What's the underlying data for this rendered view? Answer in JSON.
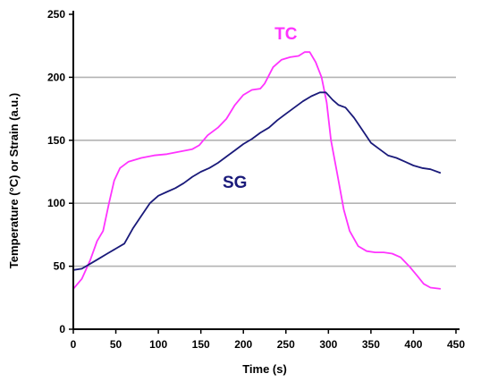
{
  "chart_data": {
    "type": "line",
    "xlabel": "Time (s)",
    "ylabel": "Temperature (°C) or Strain (a.u.)",
    "xlim": [
      0,
      450
    ],
    "ylim": [
      0,
      250
    ],
    "xticks": [
      0,
      50,
      100,
      150,
      200,
      250,
      300,
      350,
      400,
      450
    ],
    "yticks": [
      0,
      50,
      100,
      150,
      200,
      250
    ],
    "grid": "horizontal",
    "series": [
      {
        "name": "TC",
        "color": "#ff33ff",
        "points": [
          [
            0,
            32
          ],
          [
            10,
            40
          ],
          [
            20,
            55
          ],
          [
            28,
            70
          ],
          [
            35,
            78
          ],
          [
            42,
            100
          ],
          [
            48,
            118
          ],
          [
            55,
            128
          ],
          [
            65,
            133
          ],
          [
            80,
            136
          ],
          [
            95,
            138
          ],
          [
            110,
            139
          ],
          [
            125,
            141
          ],
          [
            140,
            143
          ],
          [
            148,
            146
          ],
          [
            158,
            154
          ],
          [
            170,
            160
          ],
          [
            180,
            167
          ],
          [
            190,
            178
          ],
          [
            200,
            186
          ],
          [
            210,
            190
          ],
          [
            220,
            191
          ],
          [
            225,
            195
          ],
          [
            235,
            208
          ],
          [
            245,
            214
          ],
          [
            255,
            216
          ],
          [
            265,
            217
          ],
          [
            272,
            220
          ],
          [
            278,
            220
          ],
          [
            285,
            212
          ],
          [
            292,
            200
          ],
          [
            298,
            180
          ],
          [
            303,
            150
          ],
          [
            310,
            125
          ],
          [
            318,
            95
          ],
          [
            325,
            78
          ],
          [
            335,
            66
          ],
          [
            345,
            62
          ],
          [
            355,
            61
          ],
          [
            365,
            61
          ],
          [
            375,
            60
          ],
          [
            385,
            57
          ],
          [
            395,
            50
          ],
          [
            405,
            42
          ],
          [
            412,
            36
          ],
          [
            420,
            33
          ],
          [
            432,
            32
          ]
        ]
      },
      {
        "name": "SG",
        "color": "#1a1a7a",
        "points": [
          [
            0,
            47
          ],
          [
            10,
            48
          ],
          [
            20,
            52
          ],
          [
            30,
            56
          ],
          [
            40,
            60
          ],
          [
            50,
            64
          ],
          [
            60,
            68
          ],
          [
            70,
            80
          ],
          [
            80,
            90
          ],
          [
            90,
            100
          ],
          [
            100,
            106
          ],
          [
            110,
            109
          ],
          [
            120,
            112
          ],
          [
            130,
            116
          ],
          [
            140,
            121
          ],
          [
            150,
            125
          ],
          [
            160,
            128
          ],
          [
            170,
            132
          ],
          [
            180,
            137
          ],
          [
            190,
            142
          ],
          [
            200,
            147
          ],
          [
            210,
            151
          ],
          [
            220,
            156
          ],
          [
            230,
            160
          ],
          [
            240,
            166
          ],
          [
            250,
            171
          ],
          [
            260,
            176
          ],
          [
            270,
            181
          ],
          [
            280,
            185
          ],
          [
            290,
            188
          ],
          [
            297,
            188
          ],
          [
            305,
            182
          ],
          [
            312,
            178
          ],
          [
            320,
            176
          ],
          [
            330,
            168
          ],
          [
            340,
            158
          ],
          [
            350,
            148
          ],
          [
            360,
            143
          ],
          [
            370,
            138
          ],
          [
            380,
            136
          ],
          [
            390,
            133
          ],
          [
            400,
            130
          ],
          [
            410,
            128
          ],
          [
            420,
            127
          ],
          [
            432,
            124
          ]
        ]
      }
    ]
  }
}
